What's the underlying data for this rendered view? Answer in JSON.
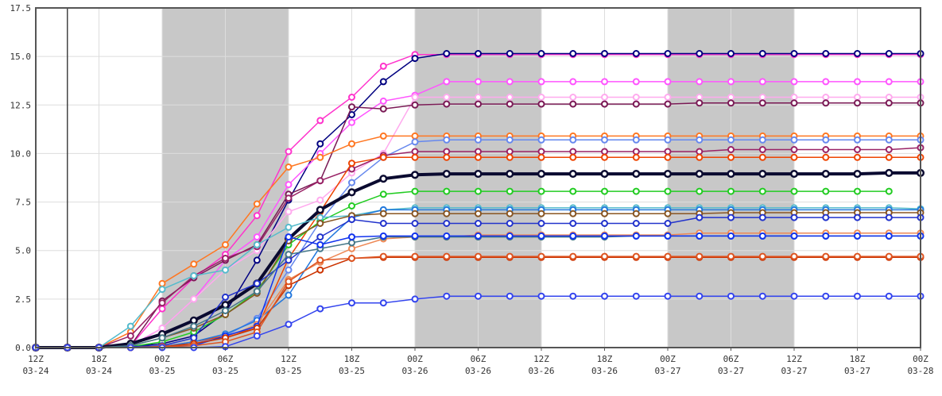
{
  "chart_data": {
    "type": "line",
    "title": "",
    "xlabel": "",
    "ylabel": "",
    "ylim": [
      0,
      17.5
    ],
    "xlim": [
      "2024-03-24T12:00Z",
      "2024-03-28T00:00Z"
    ],
    "x_step_hours": 3,
    "yticks": [
      "0.0",
      "2.5",
      "5.0",
      "7.5",
      "10.0",
      "12.5",
      "15.0",
      "17.5"
    ],
    "xticks": [
      {
        "hour": "12Z",
        "date": "03-24"
      },
      {
        "hour": "18Z",
        "date": "03-24"
      },
      {
        "hour": "00Z",
        "date": "03-25"
      },
      {
        "hour": "06Z",
        "date": "03-25"
      },
      {
        "hour": "12Z",
        "date": "03-25"
      },
      {
        "hour": "18Z",
        "date": "03-25"
      },
      {
        "hour": "00Z",
        "date": "03-26"
      },
      {
        "hour": "06Z",
        "date": "03-26"
      },
      {
        "hour": "12Z",
        "date": "03-26"
      },
      {
        "hour": "18Z",
        "date": "03-26"
      },
      {
        "hour": "00Z",
        "date": "03-27"
      },
      {
        "hour": "06Z",
        "date": "03-27"
      },
      {
        "hour": "12Z",
        "date": "03-27"
      },
      {
        "hour": "18Z",
        "date": "03-27"
      },
      {
        "hour": "00Z",
        "date": "03-28"
      }
    ],
    "night_shading": [
      {
        "from": "2024-03-25T00:00Z",
        "to": "2024-03-25T12:00Z"
      },
      {
        "from": "2024-03-26T00:00Z",
        "to": "2024-03-26T12:00Z"
      },
      {
        "from": "2024-03-27T00:00Z",
        "to": "2024-03-27T12:00Z"
      }
    ],
    "now_marker": "2024-03-24T15:00Z",
    "grid": true,
    "legend": "none",
    "colors": {
      "shading": "#c8c8c8",
      "grid": "#dddddd",
      "frame": "#555555"
    },
    "series": [
      {
        "color": "#ff33cc",
        "width": 1.5,
        "values": [
          0,
          0,
          0,
          0.1,
          2.0,
          3.6,
          4.8,
          6.8,
          10.1,
          11.7,
          12.9,
          14.5,
          15.1,
          15.1,
          15.1,
          15.1,
          15.1,
          15.1,
          15.1,
          15.1,
          15.1,
          15.1,
          15.1,
          15.1,
          15.1,
          15.1,
          15.1,
          15.1,
          15.1
        ]
      },
      {
        "color": "#000080",
        "width": 1.5,
        "values": [
          0,
          0,
          0,
          0.05,
          0.2,
          0.6,
          1.8,
          4.5,
          7.6,
          10.5,
          12.0,
          13.7,
          14.9,
          15.15,
          15.15,
          15.15,
          15.15,
          15.15,
          15.15,
          15.15,
          15.15,
          15.15,
          15.15,
          15.15,
          15.15,
          15.15,
          15.15,
          15.15,
          15.15
        ]
      },
      {
        "color": "#ff55ff",
        "width": 1.5,
        "values": [
          0,
          0,
          0,
          0.1,
          1.0,
          2.5,
          4.5,
          5.7,
          8.4,
          10.0,
          11.6,
          12.7,
          13.0,
          13.7,
          13.7,
          13.7,
          13.7,
          13.7,
          13.7,
          13.7,
          13.7,
          13.7,
          13.7,
          13.7,
          13.7,
          13.7,
          13.7,
          13.7,
          13.7
        ]
      },
      {
        "color": "#ffaaee",
        "width": 1.5,
        "values": [
          0,
          0,
          0,
          0.05,
          1.0,
          2.5,
          4.0,
          5.0,
          7.0,
          7.6,
          9.0,
          10.0,
          12.9,
          12.9,
          12.9,
          12.9,
          12.9,
          12.9,
          12.9,
          12.9,
          12.9,
          12.9,
          12.9,
          12.9,
          12.9,
          12.9,
          12.9,
          12.9,
          12.9
        ]
      },
      {
        "color": "#7a1a55",
        "width": 1.5,
        "values": [
          0,
          0,
          0,
          0.1,
          2.4,
          3.6,
          4.5,
          5.3,
          7.9,
          8.6,
          12.4,
          12.3,
          12.5,
          12.55,
          12.55,
          12.55,
          12.55,
          12.55,
          12.55,
          12.55,
          12.55,
          12.6,
          12.6,
          12.6,
          12.6,
          12.6,
          12.6,
          12.6,
          12.6
        ]
      },
      {
        "color": "#ff7722",
        "width": 1.5,
        "values": [
          0,
          0,
          0,
          0.8,
          3.3,
          4.3,
          5.3,
          7.4,
          9.3,
          9.8,
          10.5,
          10.9,
          10.9,
          10.9,
          10.9,
          10.9,
          10.9,
          10.9,
          10.9,
          10.9,
          10.9,
          10.9,
          10.9,
          10.9,
          10.9,
          10.9,
          10.9,
          10.9,
          10.9
        ]
      },
      {
        "color": "#6688ee",
        "width": 1.5,
        "values": [
          0,
          0,
          0,
          0,
          0.05,
          0.2,
          0.6,
          1.5,
          4.0,
          6.5,
          8.5,
          9.8,
          10.6,
          10.7,
          10.7,
          10.7,
          10.7,
          10.7,
          10.7,
          10.7,
          10.7,
          10.7,
          10.7,
          10.7,
          10.7,
          10.7,
          10.7,
          10.7,
          10.7
        ]
      },
      {
        "color": "#992266",
        "width": 1.5,
        "values": [
          0,
          0,
          0,
          0.6,
          2.3,
          3.7,
          4.6,
          5.2,
          7.7,
          8.6,
          9.2,
          9.9,
          10.1,
          10.1,
          10.1,
          10.1,
          10.1,
          10.1,
          10.1,
          10.1,
          10.1,
          10.1,
          10.2,
          10.2,
          10.2,
          10.2,
          10.2,
          10.2,
          10.3
        ]
      },
      {
        "color": "#ee4400",
        "width": 1.5,
        "values": [
          0,
          0,
          0,
          0,
          0.05,
          0.3,
          0.6,
          1.0,
          4.6,
          7.0,
          9.5,
          9.8,
          9.8,
          9.8,
          9.8,
          9.8,
          9.8,
          9.8,
          9.8,
          9.8,
          9.8,
          9.8,
          9.8,
          9.8,
          9.8,
          9.8,
          9.8,
          9.8,
          9.8
        ]
      },
      {
        "color": "#0a0a30",
        "width": 4,
        "values": [
          0,
          0,
          0,
          0.2,
          0.7,
          1.4,
          2.2,
          3.3,
          5.6,
          7.1,
          8.0,
          8.7,
          8.9,
          8.95,
          8.95,
          8.95,
          8.95,
          8.95,
          8.95,
          8.95,
          8.95,
          8.95,
          8.95,
          8.95,
          8.95,
          8.95,
          8.95,
          9.0,
          9.0
        ]
      },
      {
        "color": "#22cc22",
        "width": 1.5,
        "values": [
          0,
          0,
          0,
          0.05,
          0.3,
          0.8,
          1.7,
          2.9,
          5.3,
          6.5,
          7.3,
          7.9,
          8.05,
          8.05,
          8.05,
          8.05,
          8.05,
          8.05,
          8.05,
          8.05,
          8.05,
          8.05,
          8.05,
          8.05,
          8.05,
          8.05,
          8.05,
          8.05,
          null
        ]
      },
      {
        "color": "#55bbcc",
        "width": 1.5,
        "values": [
          0,
          0,
          0,
          1.1,
          3.0,
          3.7,
          4.0,
          5.3,
          6.2,
          6.7,
          6.8,
          7.1,
          7.2,
          7.2,
          7.2,
          7.2,
          7.2,
          7.2,
          7.2,
          7.2,
          7.2,
          7.2,
          7.2,
          7.2,
          7.2,
          7.2,
          7.2,
          7.2,
          7.15
        ]
      },
      {
        "color": "#2277dd",
        "width": 1.5,
        "values": [
          0,
          0,
          0,
          0,
          0.05,
          0.3,
          0.7,
          1.4,
          2.7,
          5.2,
          6.7,
          7.1,
          7.1,
          7.1,
          7.1,
          7.1,
          7.1,
          7.1,
          7.1,
          7.1,
          7.1,
          7.1,
          7.1,
          7.1,
          7.1,
          7.1,
          7.1,
          7.1,
          7.1
        ]
      },
      {
        "color": "#885522",
        "width": 1.5,
        "values": [
          0,
          0,
          0,
          0.1,
          0.5,
          1.0,
          1.7,
          2.8,
          5.5,
          6.4,
          6.8,
          6.9,
          6.9,
          6.9,
          6.9,
          6.9,
          6.9,
          6.9,
          6.9,
          6.9,
          6.9,
          6.9,
          6.95,
          6.95,
          6.95,
          6.95,
          6.95,
          6.95,
          6.95
        ]
      },
      {
        "color": "#2233cc",
        "width": 1.5,
        "values": [
          0,
          0,
          0,
          0.05,
          0.1,
          0.5,
          2.6,
          3.3,
          4.5,
          5.7,
          6.6,
          6.4,
          6.4,
          6.4,
          6.4,
          6.4,
          6.4,
          6.4,
          6.4,
          6.4,
          6.4,
          6.7,
          6.7,
          6.7,
          6.7,
          6.7,
          6.7,
          6.7,
          6.7
        ]
      },
      {
        "color": "#ee8855",
        "width": 1.5,
        "values": [
          0,
          0,
          0,
          0,
          0.05,
          0.2,
          0.5,
          1.2,
          3.5,
          4.4,
          5.1,
          5.6,
          5.7,
          5.7,
          5.8,
          5.8,
          5.8,
          5.8,
          5.8,
          5.8,
          5.8,
          5.9,
          5.9,
          5.9,
          5.9,
          5.9,
          5.9,
          5.9,
          5.9
        ]
      },
      {
        "color": "#447788",
        "width": 1.5,
        "values": [
          0,
          0,
          0,
          0.1,
          0.5,
          1.1,
          1.9,
          2.9,
          4.8,
          5.1,
          5.4,
          5.7,
          5.7,
          5.7,
          5.7,
          5.7,
          5.7,
          5.7,
          5.7,
          5.75,
          5.75,
          5.75,
          5.75,
          5.75,
          5.75,
          5.75,
          5.75,
          5.75,
          5.75
        ]
      },
      {
        "color": "#1133ee",
        "width": 1.5,
        "values": [
          0,
          0,
          0,
          0,
          0.05,
          0.1,
          0.6,
          1.1,
          5.7,
          5.3,
          5.7,
          5.75,
          5.75,
          5.75,
          5.75,
          5.75,
          5.75,
          5.75,
          5.75,
          5.75,
          5.75,
          5.75,
          5.75,
          5.75,
          5.75,
          5.75,
          5.75,
          5.75,
          5.75
        ]
      },
      {
        "color": "#cc3300",
        "width": 1.5,
        "values": [
          0,
          0,
          0,
          0,
          0.05,
          0.2,
          0.5,
          1.0,
          3.2,
          4.0,
          4.6,
          4.65,
          4.65,
          4.65,
          4.65,
          4.65,
          4.65,
          4.65,
          4.65,
          4.65,
          4.65,
          4.65,
          4.65,
          4.65,
          4.65,
          4.65,
          4.65,
          4.65,
          4.65
        ]
      },
      {
        "color": "#dd5522",
        "width": 1.5,
        "values": [
          0,
          0,
          0,
          0,
          0.05,
          0.1,
          0.3,
          0.8,
          3.4,
          4.5,
          4.6,
          4.7,
          4.7,
          4.7,
          4.7,
          4.7,
          4.7,
          4.7,
          4.7,
          4.7,
          4.7,
          4.7,
          4.7,
          4.7,
          4.7,
          4.7,
          4.7,
          4.7,
          4.7
        ]
      },
      {
        "color": "#3344ee",
        "width": 1.5,
        "values": [
          0,
          0,
          0,
          0,
          0,
          0,
          0.05,
          0.6,
          1.2,
          2.0,
          2.3,
          2.3,
          2.5,
          2.65,
          2.65,
          2.65,
          2.65,
          2.65,
          2.65,
          2.65,
          2.65,
          2.65,
          2.65,
          2.65,
          2.65,
          2.65,
          2.65,
          2.65,
          2.65
        ]
      }
    ]
  }
}
